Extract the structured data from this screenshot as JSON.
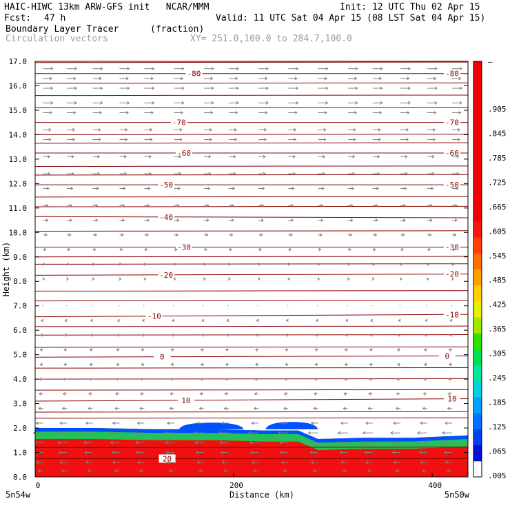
{
  "header": {
    "title_left": "HAIC-HIWC 13km ARW-GFS init   NCAR/MMM",
    "init": "Init: 12 UTC Thu 02 Apr 15",
    "fcst_label": "Fcst:",
    "fcst_value": "47 h",
    "valid": "Valid: 11 UTC Sat 04 Apr 15 (08 LST Sat 04 Apr 15)",
    "field_name": "Boundary Layer Tracer",
    "field_units": "(fraction)",
    "vector_name": "Circulation vectors",
    "xy_range": "XY= 251.0,100.0 to 284.7,100.0"
  },
  "chart_data": {
    "type": "heatmap",
    "xlabel": "Distance (km)",
    "ylabel": "Height (km)",
    "xlim": [
      0,
      436
    ],
    "ylim": [
      0,
      17
    ],
    "x_ticks": [
      {
        "value": 0,
        "label": "0"
      },
      {
        "value": 200,
        "label": "200"
      },
      {
        "value": 400,
        "label": "400"
      }
    ],
    "x_end_labels": {
      "left": "5n54w",
      "right": "5n50w"
    },
    "y_ticks": [
      {
        "value": 0,
        "label": "0.0"
      },
      {
        "value": 1,
        "label": "1.0"
      },
      {
        "value": 2,
        "label": "2.0"
      },
      {
        "value": 3,
        "label": "3.0"
      },
      {
        "value": 4,
        "label": "4.0"
      },
      {
        "value": 5,
        "label": "5.0"
      },
      {
        "value": 6,
        "label": "6.0"
      },
      {
        "value": 7,
        "label": "7.0"
      },
      {
        "value": 8,
        "label": "8.0"
      },
      {
        "value": 9,
        "label": "9.0"
      },
      {
        "value": 10,
        "label": "10.0"
      },
      {
        "value": 11,
        "label": "11.0"
      },
      {
        "value": 12,
        "label": "12.0"
      },
      {
        "value": 13,
        "label": "13.0"
      },
      {
        "value": 14,
        "label": "14.0"
      },
      {
        "value": 15,
        "label": "15.0"
      },
      {
        "value": 16,
        "label": "16.0"
      },
      {
        "value": 17,
        "label": "17.0"
      }
    ],
    "colorbar": {
      "labels": [
        ".005",
        ".065",
        ".125",
        ".185",
        ".245",
        ".305",
        ".365",
        ".425",
        ".485",
        ".545",
        ".605",
        ".665",
        ".725",
        ".785",
        ".845",
        ".905"
      ],
      "top_label": "–",
      "colors": [
        "#ffffff",
        "#0010d8",
        "#0040f0",
        "#0070ff",
        "#00a0ff",
        "#00d0e0",
        "#00e8a0",
        "#00e050",
        "#30e000",
        "#a0e800",
        "#e8f000",
        "#ffd000",
        "#ffa000",
        "#ff7000",
        "#ff4000",
        "#f81808",
        "#f00000",
        "#f00000",
        "#f00000",
        "#f00000",
        "#f00000",
        "#f00000",
        "#f00000",
        "#f00000",
        "#f00000",
        "#f00000"
      ]
    },
    "tracer": {
      "color": "#f01010",
      "top_color": "#00e060",
      "edge_color": "#0050ff",
      "top_height_profile": [
        {
          "x": 0,
          "z": 2.0
        },
        {
          "x": 60,
          "z": 2.0
        },
        {
          "x": 120,
          "z": 1.95
        },
        {
          "x": 180,
          "z": 1.95
        },
        {
          "x": 230,
          "z": 1.9
        },
        {
          "x": 265,
          "z": 1.9
        },
        {
          "x": 285,
          "z": 1.55
        },
        {
          "x": 330,
          "z": 1.6
        },
        {
          "x": 380,
          "z": 1.6
        },
        {
          "x": 436,
          "z": 1.7
        }
      ],
      "cloud_bumps": [
        {
          "x0": 145,
          "x1": 210,
          "z": 2.22
        },
        {
          "x0": 232,
          "x1": 285,
          "z": 2.25
        }
      ]
    },
    "contours": {
      "color": "#8b0000",
      "levels": [
        {
          "label": "-80",
          "z_left": 16.5,
          "z_right": 16.5,
          "label_x": [
            160,
            420
          ]
        },
        {
          "label": "-70",
          "z_left": 14.5,
          "z_right": 14.5,
          "label_x": [
            145,
            420
          ]
        },
        {
          "label": "-60",
          "z_left": 13.25,
          "z_right": 13.25,
          "label_x": [
            150,
            420
          ]
        },
        {
          "label": "-50",
          "z_left": 11.95,
          "z_right": 11.95,
          "label_x": [
            132,
            420
          ]
        },
        {
          "label": "-40",
          "z_left": 10.65,
          "z_right": 10.6,
          "label_x": [
            132,
            0
          ]
        },
        {
          "label": "-30",
          "z_left": 9.4,
          "z_right": 9.4,
          "label_x": [
            150,
            420
          ]
        },
        {
          "label": "-20",
          "z_left": 8.25,
          "z_right": 8.3,
          "label_x": [
            132,
            420
          ]
        },
        {
          "label": "-10",
          "z_left": 6.55,
          "z_right": 6.65,
          "label_x": [
            120,
            420
          ]
        },
        {
          "label": "0",
          "z_left": 4.9,
          "z_right": 4.95,
          "label_x": [
            128,
            415
          ]
        },
        {
          "label": "10",
          "z_left": 3.1,
          "z_right": 3.2,
          "label_x": [
            152,
            420
          ]
        },
        {
          "label": "20",
          "z_left": 0.75,
          "z_right": 0.75,
          "label_x": [
            133,
            0
          ]
        }
      ],
      "extra_lines_z": [
        16.95,
        16.1,
        15.6,
        15.1,
        14.0,
        13.65,
        12.7,
        12.35,
        11.45,
        11.05,
        10.05,
        9.0,
        8.7,
        7.6,
        7.2,
        6.15,
        5.8,
        5.3,
        4.45,
        4.0,
        3.55,
        2.65,
        2.4,
        1.2
      ]
    },
    "vectors": {
      "color": "#808080",
      "columns_x": [
        8,
        32,
        58,
        85,
        110,
        140,
        170,
        195,
        225,
        255,
        285,
        315,
        340,
        368,
        395,
        420
      ],
      "rows": [
        {
          "z": 16.7,
          "u": 1.0
        },
        {
          "z": 16.3,
          "u": 0.9
        },
        {
          "z": 15.9,
          "u": 1.0
        },
        {
          "z": 15.3,
          "u": 1.0
        },
        {
          "z": 14.9,
          "u": 0.9
        },
        {
          "z": 14.2,
          "u": 0.8
        },
        {
          "z": 13.8,
          "u": 0.8
        },
        {
          "z": 13.1,
          "u": 0.7
        },
        {
          "z": 12.4,
          "u": 0.7
        },
        {
          "z": 11.8,
          "u": 0.6
        },
        {
          "z": 11.1,
          "u": 0.5
        },
        {
          "z": 10.5,
          "u": 0.5
        },
        {
          "z": 9.9,
          "u": 0.4
        },
        {
          "z": 9.3,
          "u": 0.3
        },
        {
          "z": 8.7,
          "u": 0.2
        },
        {
          "z": 8.1,
          "u": 0.15
        },
        {
          "z": 7.6,
          "u": 0.1
        },
        {
          "z": 7.0,
          "u": -0.1
        },
        {
          "z": 6.4,
          "u": -0.2
        },
        {
          "z": 5.8,
          "u": -0.25
        },
        {
          "z": 5.2,
          "u": -0.3
        },
        {
          "z": 4.6,
          "u": -0.3
        },
        {
          "z": 4.0,
          "u": -0.35
        },
        {
          "z": 3.4,
          "u": -0.4
        },
        {
          "z": 2.8,
          "u": -0.45
        },
        {
          "z": 2.2,
          "u": -0.7
        },
        {
          "z": 1.8,
          "u": -1.0
        },
        {
          "z": 1.4,
          "u": -0.9
        },
        {
          "z": 1.0,
          "u": -0.8
        },
        {
          "z": 0.6,
          "u": -0.7
        },
        {
          "z": 0.25,
          "u": -0.5
        }
      ]
    }
  }
}
